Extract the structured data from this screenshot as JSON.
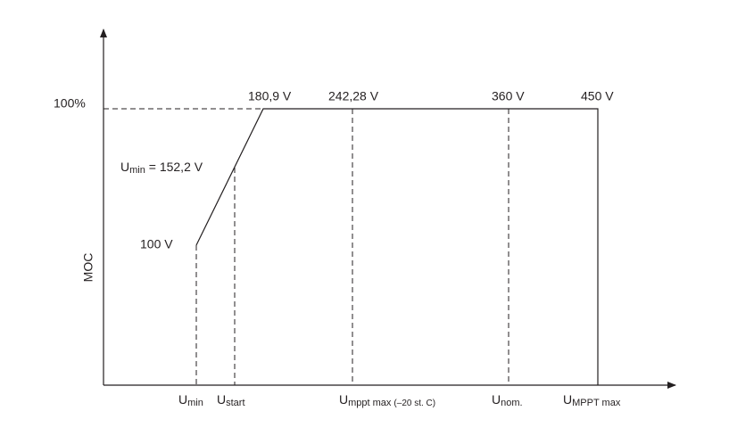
{
  "y_axis_label": "MOC",
  "level_label": "100%",
  "point_labels": [
    "180,9 V",
    "242,28 V",
    "360 V",
    "450 V",
    "100 V"
  ],
  "umin_label": {
    "base": "U",
    "sub": "min",
    "rest": " = 152,2 V"
  },
  "x_labels": [
    {
      "base": "U",
      "sub": "min"
    },
    {
      "base": "U",
      "sub": "start"
    },
    {
      "base": "U",
      "sub": "mppt max",
      "note": "(–20 st. C)"
    },
    {
      "base": "U",
      "sub": "nom."
    },
    {
      "base": "U",
      "sub": "MPPT max"
    }
  ]
}
